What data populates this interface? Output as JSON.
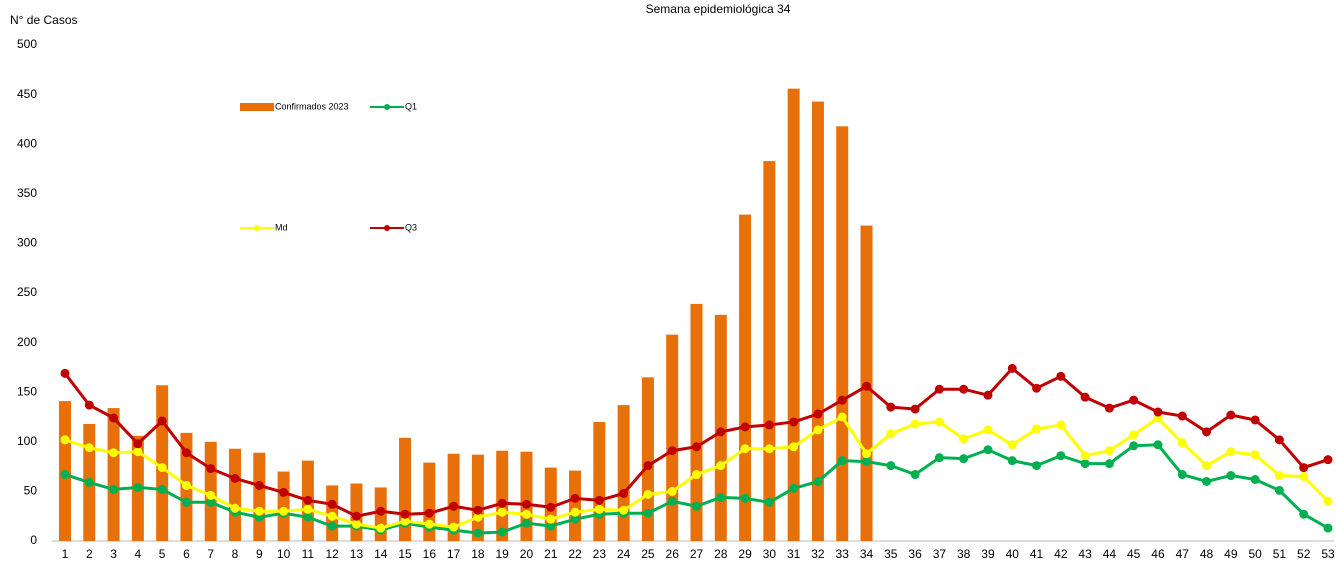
{
  "chart_data": {
    "type": "bar-line",
    "title": "Semana epidemiológica 34",
    "y_label": "N° de Casos",
    "categories": [
      "1",
      "2",
      "3",
      "4",
      "5",
      "6",
      "7",
      "8",
      "9",
      "10",
      "11",
      "12",
      "13",
      "14",
      "15",
      "16",
      "17",
      "18",
      "19",
      "20",
      "21",
      "22",
      "23",
      "24",
      "25",
      "26",
      "27",
      "28",
      "29",
      "30",
      "31",
      "32",
      "33",
      "34",
      "35",
      "36",
      "37",
      "38",
      "39",
      "40",
      "41",
      "42",
      "43",
      "44",
      "45",
      "46",
      "47",
      "48",
      "49",
      "50",
      "51",
      "52",
      "53"
    ],
    "series": [
      {
        "name": "Confirmados 2023",
        "kind": "bar",
        "color": "#e8700a",
        "values": [
          141,
          118,
          134,
          106,
          157,
          109,
          100,
          93,
          89,
          70,
          81,
          56,
          58,
          54,
          104,
          79,
          88,
          87,
          91,
          90,
          74,
          71,
          120,
          137,
          165,
          208,
          239,
          228,
          329,
          383,
          456,
          443,
          418,
          318,
          null,
          null,
          null,
          null,
          null,
          null,
          null,
          null,
          null,
          null,
          null,
          null,
          null,
          null,
          null,
          null,
          null,
          null,
          null
        ]
      },
      {
        "name": "Q1",
        "kind": "line",
        "color": "#00b050",
        "values": [
          67,
          59,
          52,
          54,
          52,
          39,
          39,
          29,
          24,
          28,
          24,
          15,
          15,
          11,
          18,
          14,
          11,
          8,
          9,
          18,
          15,
          22,
          27,
          28,
          28,
          40,
          35,
          44,
          43,
          39,
          53,
          60,
          81,
          80,
          76,
          67,
          84,
          83,
          92,
          81,
          76,
          86,
          78,
          78,
          96,
          97,
          67,
          60,
          66,
          62,
          51,
          27,
          13
        ]
      },
      {
        "name": "Md",
        "kind": "line",
        "color": "#ffff00",
        "values": [
          102,
          94,
          89,
          90,
          74,
          56,
          46,
          33,
          30,
          30,
          32,
          25,
          17,
          13,
          20,
          17,
          14,
          24,
          29,
          27,
          22,
          29,
          32,
          31,
          47,
          50,
          67,
          76,
          93,
          93,
          95,
          112,
          125,
          88,
          108,
          118,
          120,
          103,
          112,
          97,
          113,
          117,
          86,
          91,
          107,
          124,
          99,
          76,
          90,
          87,
          66,
          65,
          40
        ]
      },
      {
        "name": "Q3",
        "kind": "line",
        "color": "#c00000",
        "values": [
          169,
          137,
          124,
          98,
          121,
          89,
          73,
          63,
          56,
          49,
          41,
          37,
          25,
          30,
          27,
          28,
          35,
          31,
          38,
          37,
          34,
          43,
          41,
          48,
          76,
          91,
          95,
          110,
          115,
          117,
          120,
          128,
          142,
          156,
          135,
          133,
          153,
          153,
          147,
          174,
          154,
          166,
          145,
          134,
          142,
          130,
          126,
          110,
          127,
          122,
          102,
          74,
          82
        ]
      }
    ],
    "ylim": [
      0,
      500
    ],
    "yticks": [
      0,
      50,
      100,
      150,
      200,
      250,
      300,
      350,
      400,
      450,
      500
    ],
    "grid": false
  }
}
